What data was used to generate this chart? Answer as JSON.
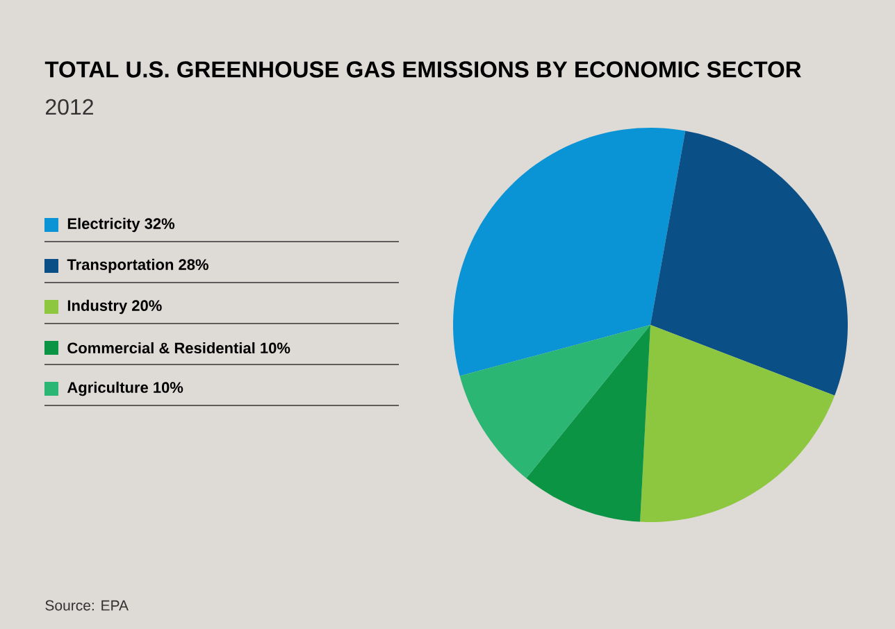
{
  "chart_data": {
    "type": "pie",
    "title": "TOTAL U.S. GREENHOUSE GAS EMISSIONS BY ECONOMIC SECTOR",
    "subtitle": "2012",
    "categories": [
      "Electricity 32%",
      "Transportation 28%",
      "Industry 20%",
      "Commercial & Residential 10%",
      "Agriculture 10%"
    ],
    "values": [
      32,
      28,
      20,
      10,
      10
    ],
    "colors": [
      "#0a93d5",
      "#0b4f87",
      "#8dc63f",
      "#0b9444",
      "#2bb673"
    ],
    "legend": "left",
    "annotations": [
      "Source: EPA"
    ]
  }
}
